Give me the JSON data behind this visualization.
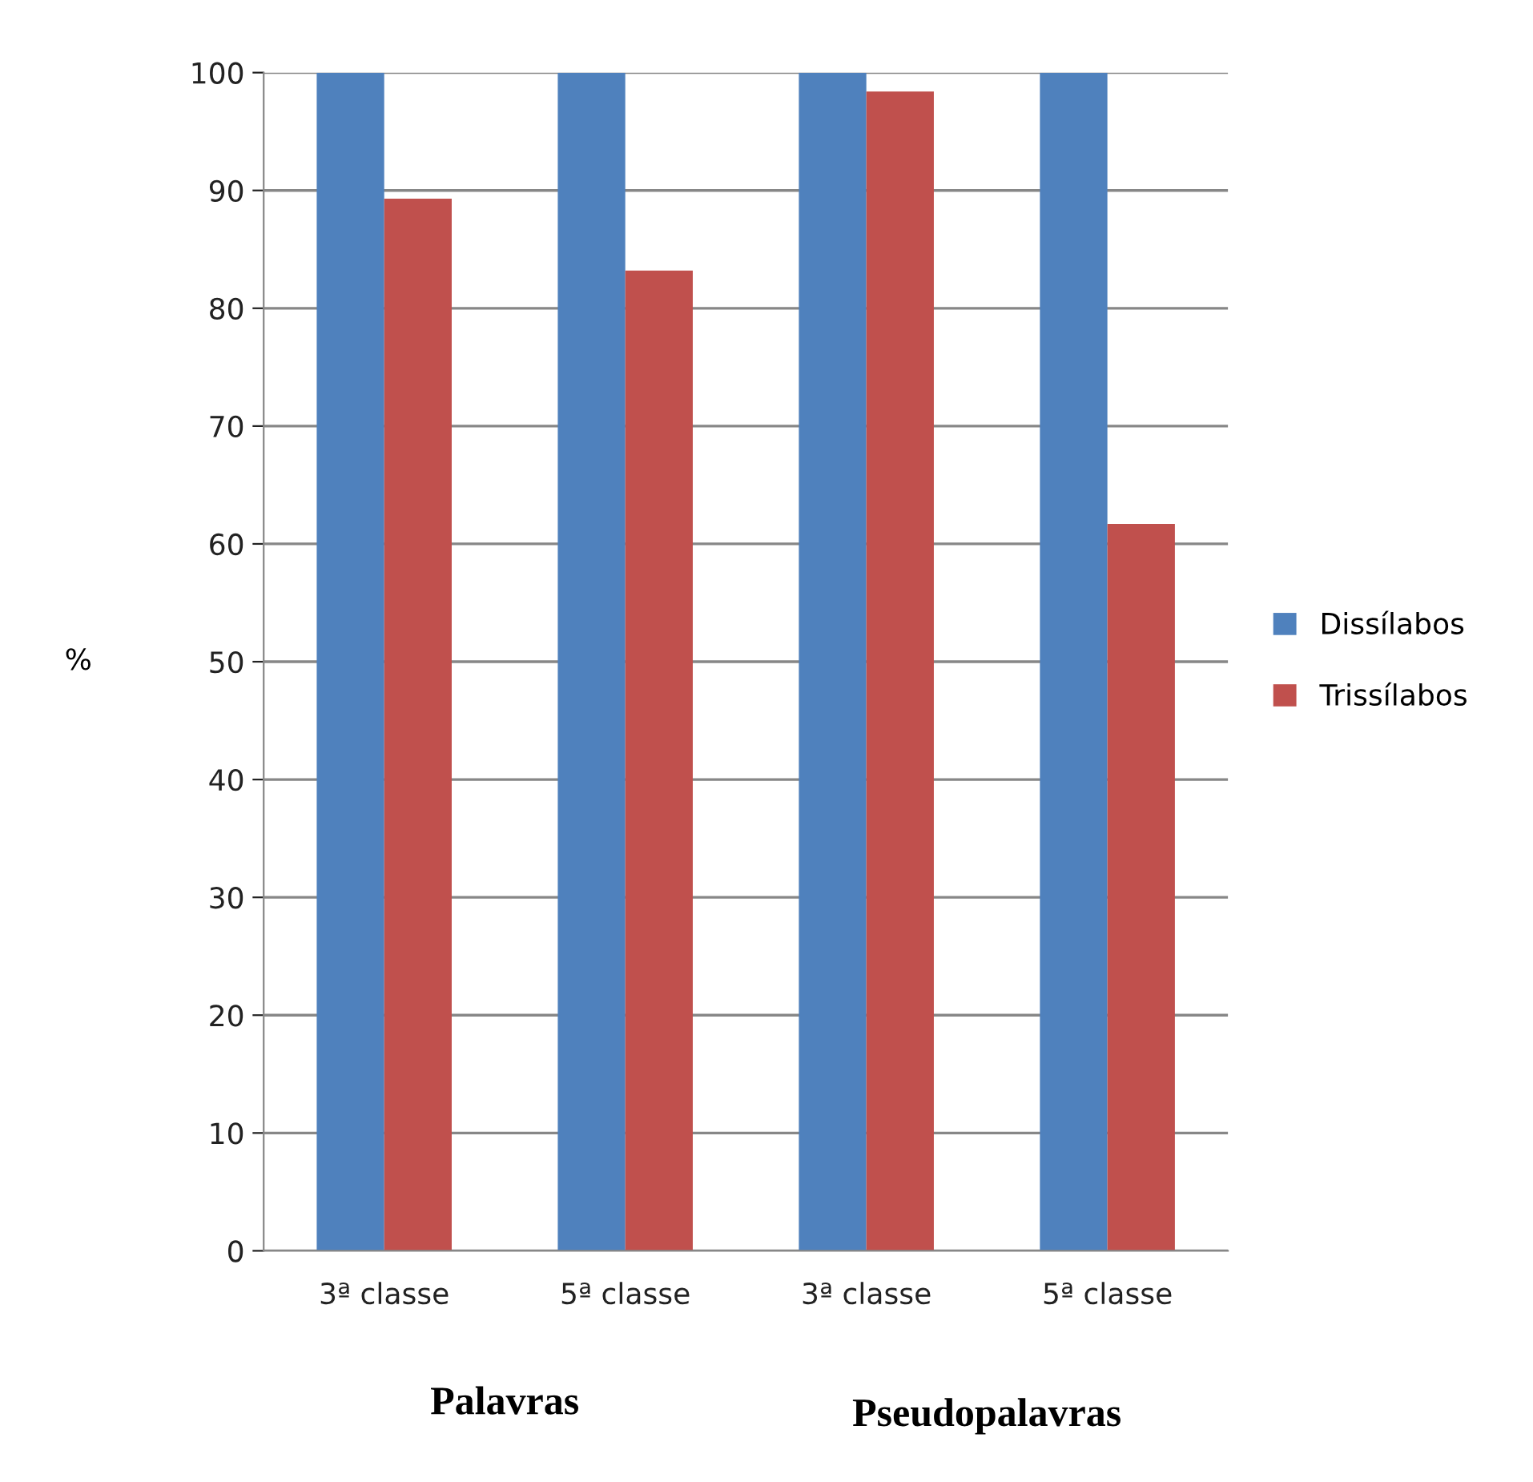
{
  "chart_data": {
    "type": "bar",
    "ylabel": "%",
    "categories": [
      "3ª classe",
      "5ª classe",
      "3ª classe",
      "5ª classe"
    ],
    "series": [
      {
        "name": "Dissílabos",
        "color": "#4f81bd",
        "values": [
          100,
          100,
          100,
          100
        ]
      },
      {
        "name": "Trissílabos",
        "color": "#c0504d",
        "values": [
          89.3,
          83.2,
          98.4,
          61.7
        ]
      }
    ],
    "ylim": [
      0,
      100
    ],
    "yticks": [
      0,
      10,
      20,
      30,
      40,
      50,
      60,
      70,
      80,
      90,
      100
    ],
    "grid": "y",
    "legend": "right",
    "annotations": [
      "Palavras",
      "Pseudopalavras"
    ]
  }
}
